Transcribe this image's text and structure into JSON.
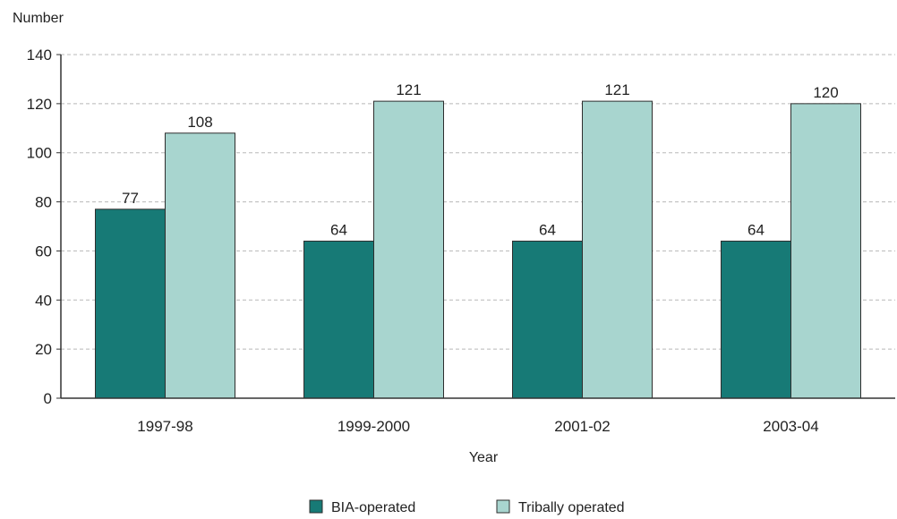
{
  "chart_data": {
    "type": "bar",
    "ylabel": "Number",
    "xlabel": "Year",
    "categories": [
      "1997-98",
      "1999-2000",
      "2001-02",
      "2003-04"
    ],
    "series": [
      {
        "name": "BIA-operated",
        "values": [
          77,
          64,
          64,
          64
        ],
        "color": "#177a76"
      },
      {
        "name": "Tribally operated",
        "values": [
          108,
          121,
          121,
          120
        ],
        "color": "#a8d5cf"
      }
    ],
    "ylim": [
      0,
      140
    ],
    "yticks": [
      0,
      20,
      40,
      60,
      80,
      100,
      120,
      140
    ],
    "grid": true,
    "legend": "bottom"
  }
}
